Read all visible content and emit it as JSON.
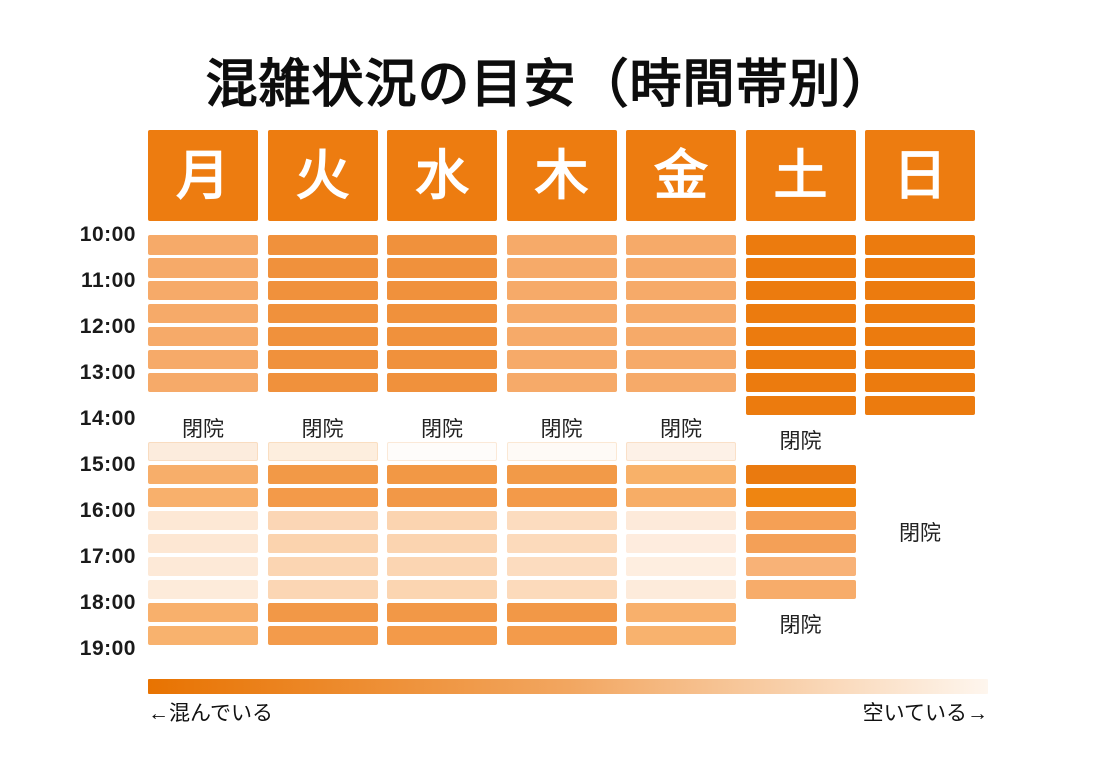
{
  "title": "混雑状況の目安（時間帯別）",
  "closed_label": "閉院",
  "time_labels": [
    "10:00",
    "11:00",
    "12:00",
    "13:00",
    "14:00",
    "15:00",
    "16:00",
    "17:00",
    "18:00",
    "19:00"
  ],
  "legend": {
    "left": "←混んでいる",
    "right": "空いている→"
  },
  "colors": {
    "header_bg": "#ed7c10",
    "header_text": "#ffffff",
    "legend_gradient": [
      "#e87301",
      "#f2a660",
      "#fef6ee"
    ]
  },
  "days": [
    {
      "label": "月",
      "slots": [
        "#f6aa69",
        "#f6aa69",
        "#f6aa69",
        "#f6aa69",
        "#f6aa69",
        "#f6aa69",
        "#f6aa69",
        null,
        null,
        null,
        "#f7ae6a",
        "#f8b06c",
        "#fde8d5",
        "#fde7d3",
        "#fde9d7",
        "#fdebda",
        "#f8b06c",
        "#f8b26e"
      ],
      "faint_slots": {
        "9": "#fcecdd"
      }
    },
    {
      "label": "火",
      "slots": [
        "#f0913c",
        "#f0913c",
        "#f0913c",
        "#f0913c",
        "#f0913c",
        "#f0913c",
        "#f0913c",
        null,
        null,
        null,
        "#f29947",
        "#f39a49",
        "#fbd6b5",
        "#fbd3ae",
        "#fbd5b2",
        "#fbd6b4",
        "#f29847",
        "#f39b4b"
      ],
      "faint_slots": {
        "9": "#fdeede"
      }
    },
    {
      "label": "水",
      "slots": [
        "#f0913c",
        "#f0913c",
        "#f0913c",
        "#f0913c",
        "#f0913c",
        "#f0913c",
        "#f0913c",
        null,
        null,
        null,
        "#f29845",
        "#f29847",
        "#fbd4b0",
        "#fbd4b0",
        "#fbd5b2",
        "#fbd5b1",
        "#f29847",
        "#f39a49"
      ],
      "faint_slots": {
        "9": "#fefcfa"
      }
    },
    {
      "label": "木",
      "slots": [
        "#f6aa69",
        "#f6aa69",
        "#f6aa69",
        "#f6aa69",
        "#f6aa69",
        "#f6aa69",
        "#f6aa69",
        null,
        null,
        null,
        "#f29a48",
        "#f39a49",
        "#fcdcbf",
        "#fcdabb",
        "#fcdcbf",
        "#fcdabb",
        "#f29847",
        "#f39b4b"
      ],
      "faint_slots": {
        "9": "#fefaf6"
      }
    },
    {
      "label": "金",
      "slots": [
        "#f6aa69",
        "#f6aa69",
        "#f6aa69",
        "#f6aa69",
        "#f6aa69",
        "#f6aa69",
        "#f6aa69",
        null,
        null,
        null,
        "#f8b169",
        "#f7ad66",
        "#fdeada",
        "#feecde",
        "#feee e0",
        "#fdebdb",
        "#f8b06c",
        "#f8b26e"
      ],
      "faint_slots": {
        "9": "#fdf1e7"
      }
    },
    {
      "label": "土",
      "slots": [
        "#ec7b0e",
        "#ec7b0e",
        "#ec7b0e",
        "#ec7b0e",
        "#ec7b0e",
        "#ec7b0e",
        "#ec7b0e",
        "#ec7b0e",
        null,
        null,
        "#ea7a0f",
        "#ef8511",
        "#f5a055",
        "#f4a057",
        "#f8b277",
        "#f7ac6a",
        null,
        null
      ],
      "faint_slots": {}
    },
    {
      "label": "日",
      "slots": [
        "#ec7b0e",
        "#ec7b0e",
        "#ec7b0e",
        "#ec7b0e",
        "#ec7b0e",
        "#ec7b0e",
        "#ec7b0e",
        "#ec7b0e",
        null,
        null,
        null,
        null,
        null,
        null,
        null,
        null,
        null,
        null
      ],
      "faint_slots": {}
    }
  ],
  "chart_data": {
    "type": "heatmap",
    "title": "混雑状況の目安（時間帯別）",
    "x_categories": [
      "月",
      "火",
      "水",
      "木",
      "金",
      "土",
      "日"
    ],
    "y_slot_starts": [
      "10:00",
      "10:30",
      "11:00",
      "11:30",
      "12:00",
      "12:30",
      "13:00",
      "13:30",
      "14:00",
      "14:30",
      "15:00",
      "15:30",
      "16:00",
      "16:30",
      "17:00",
      "17:30",
      "18:00",
      "18:30"
    ],
    "value_scale": "1 = 空いている (empty) … 5 = 混んでいる (crowded), null = 閉院 (closed)",
    "series": [
      {
        "name": "月",
        "values": [
          3,
          3,
          3,
          3,
          3,
          3,
          3,
          null,
          null,
          null,
          3,
          3,
          1,
          1,
          1,
          1,
          3,
          3
        ]
      },
      {
        "name": "火",
        "values": [
          4,
          4,
          4,
          4,
          4,
          4,
          4,
          null,
          null,
          null,
          4,
          4,
          2,
          2,
          2,
          2,
          4,
          4
        ]
      },
      {
        "name": "水",
        "values": [
          4,
          4,
          4,
          4,
          4,
          4,
          4,
          null,
          null,
          null,
          4,
          4,
          2,
          2,
          2,
          2,
          4,
          4
        ]
      },
      {
        "name": "木",
        "values": [
          3,
          3,
          3,
          3,
          3,
          3,
          3,
          null,
          null,
          null,
          4,
          4,
          2,
          2,
          2,
          2,
          4,
          4
        ]
      },
      {
        "name": "金",
        "values": [
          3,
          3,
          3,
          3,
          3,
          3,
          3,
          null,
          null,
          null,
          3,
          3,
          1,
          1,
          1,
          1,
          3,
          3
        ]
      },
      {
        "name": "土",
        "values": [
          5,
          5,
          5,
          5,
          5,
          5,
          5,
          5,
          null,
          null,
          5,
          5,
          3,
          3,
          3,
          3,
          null,
          null
        ]
      },
      {
        "name": "日",
        "values": [
          5,
          5,
          5,
          5,
          5,
          5,
          5,
          5,
          null,
          null,
          null,
          null,
          null,
          null,
          null,
          null,
          null,
          null
        ]
      }
    ],
    "closed_text": "閉院",
    "legend": {
      "high_label": "←混んでいる",
      "low_label": "空いている→",
      "style": "horizontal gradient bar, dark orange (crowded) → near white (empty)"
    },
    "layout": {
      "columns": "days of week",
      "rows": "30-minute slots 10:00–19:00",
      "grid": false,
      "legend_position": "bottom"
    }
  }
}
